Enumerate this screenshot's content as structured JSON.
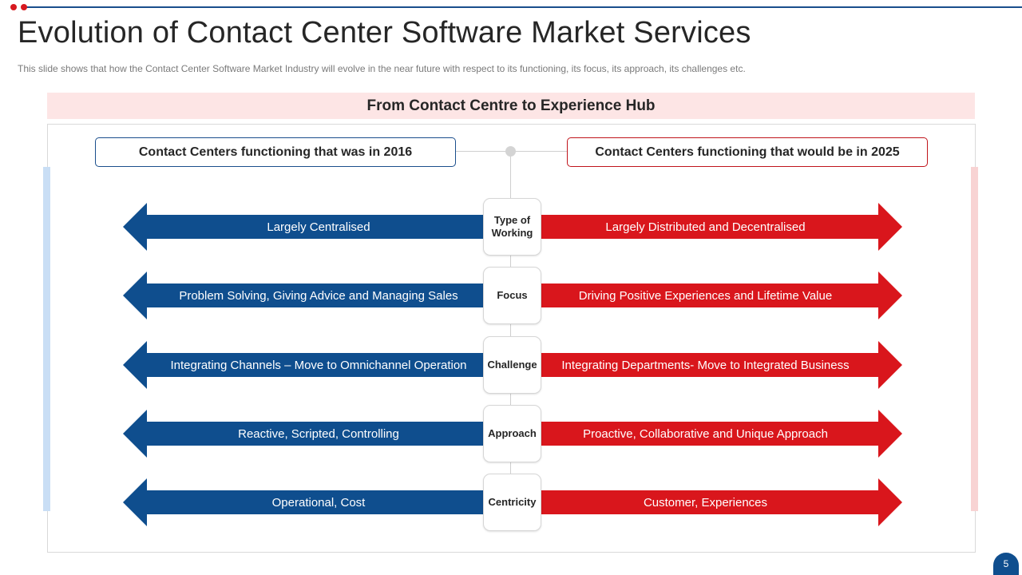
{
  "title": "Evolution of Contact Center Software Market Services",
  "subtitle": "This slide shows that how the Contact Center Software Market Industry will evolve in the near future with respect to its functioning, its focus, its approach, its challenges etc.",
  "banner": "From Contact Centre to Experience Hub",
  "header_left": "Contact Centers functioning that was in 2016",
  "header_right": "Contact Centers functioning that would be in 2025",
  "rows": [
    {
      "label": "Type of Working",
      "left": "Largely Centralised",
      "right": "Largely Distributed and Decentralised"
    },
    {
      "label": "Focus",
      "left": "Problem Solving, Giving Advice and Managing Sales",
      "right": "Driving Positive Experiences and Lifetime Value"
    },
    {
      "label": "Challenge",
      "left": "Integrating Channels – Move to Omnichannel Operation",
      "right": "Integrating Departments- Move to Integrated Business"
    },
    {
      "label": "Approach",
      "left": "Reactive, Scripted, Controlling",
      "right": "Proactive, Collaborative and Unique Approach"
    },
    {
      "label": "Centricity",
      "left": "Operational, Cost",
      "right": "Customer, Experiences"
    }
  ],
  "page_number": "5",
  "colors": {
    "blue": "#0f4e8e",
    "red": "#d9161c",
    "banner": "#fde5e5"
  }
}
